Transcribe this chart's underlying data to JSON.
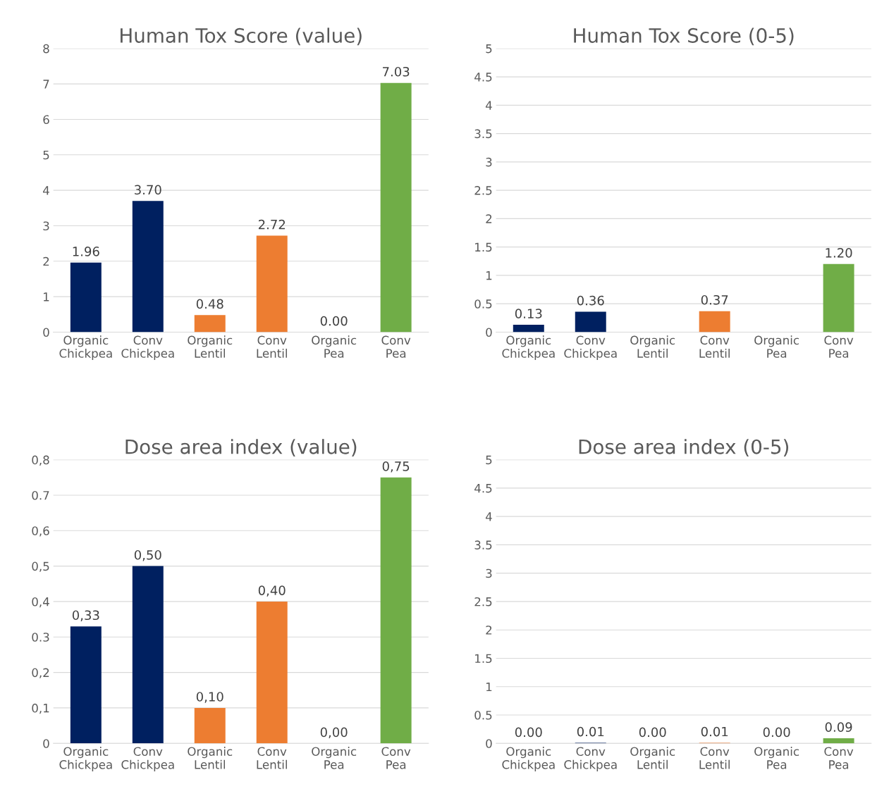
{
  "chart_data": [
    {
      "type": "bar",
      "title": "Human Tox Score (value)",
      "categories": [
        "Organic Chickpea",
        "Conv Chickpea",
        "Organic Lentil",
        "Conv Lentil",
        "Organic Pea",
        "Conv Pea"
      ],
      "values": [
        1.96,
        3.7,
        0.48,
        2.72,
        0.0,
        7.03
      ],
      "colors": [
        "#002060",
        "#002060",
        "#ed7d31",
        "#ed7d31",
        "#ed7d31",
        "#70ad47"
      ],
      "value_labels": [
        "1.96",
        "3.70",
        "0.48",
        "2.72",
        "0.00",
        "7.03"
      ],
      "ylim": [
        0,
        8
      ],
      "yticks": [
        0,
        1,
        2,
        3,
        4,
        5,
        6,
        7,
        8
      ],
      "grid": "y",
      "legend": false
    },
    {
      "type": "bar",
      "title": "Human Tox Score (0-5)",
      "categories": [
        "Organic Chickpea",
        "Conv Chickpea",
        "Organic Lentil",
        "Conv Lentil",
        "Organic Pea",
        "Conv Pea"
      ],
      "values": [
        0.13,
        0.36,
        null,
        0.37,
        null,
        1.2
      ],
      "colors": [
        "#002060",
        "#002060",
        "#ed7d31",
        "#ed7d31",
        "#ed7d31",
        "#70ad47"
      ],
      "value_labels": [
        "0.13",
        "0.36",
        null,
        "0.37",
        null,
        "1.20"
      ],
      "ylim": [
        0,
        5
      ],
      "yticks": [
        0,
        0.5,
        1,
        1.5,
        2,
        2.5,
        3,
        3.5,
        4,
        4.5,
        5
      ],
      "grid": "y",
      "legend": false
    },
    {
      "type": "bar",
      "title": "Dose area index (value)",
      "categories": [
        "Organic Chickpea",
        "Conv Chickpea",
        "Organic Lentil",
        "Conv Lentil",
        "Organic Pea",
        "Conv Pea"
      ],
      "values": [
        0.33,
        0.5,
        0.1,
        0.4,
        0.0,
        0.75
      ],
      "colors": [
        "#002060",
        "#002060",
        "#ed7d31",
        "#ed7d31",
        "#ed7d31",
        "#70ad47"
      ],
      "value_labels": [
        "0,33",
        "0,50",
        "0,10",
        "0,40",
        "0,00",
        "0,75"
      ],
      "ylim": [
        0,
        0.8
      ],
      "yticks": [
        0,
        {
          "value": 0.1,
          "label": "0,1"
        },
        {
          "value": 0.2,
          "label": "0,2"
        },
        {
          "value": 0.3,
          "label": "0.3"
        },
        {
          "value": 0.4,
          "label": "0,4"
        },
        {
          "value": 0.5,
          "label": "0,5"
        },
        {
          "value": 0.6,
          "label": "0,6"
        },
        {
          "value": 0.7,
          "label": "0.7"
        },
        {
          "value": 0.8,
          "label": "0,8"
        }
      ],
      "grid": "y",
      "legend": false
    },
    {
      "type": "bar",
      "title": "Dose area index (0-5)",
      "categories": [
        "Organic Chickpea",
        "Conv Chickpea",
        "Organic Lentil",
        "Conv Lentil",
        "Organic Pea",
        "Conv Pea"
      ],
      "values": [
        0.0,
        0.01,
        0.0,
        0.01,
        0.0,
        0.09
      ],
      "colors": [
        "#002060",
        "#002060",
        "#ed7d31",
        "#ed7d31",
        "#ed7d31",
        "#70ad47"
      ],
      "value_labels": [
        "0.00",
        "0.01",
        "0.00",
        "0.01",
        "0.00",
        "0.09"
      ],
      "ylim": [
        0,
        5
      ],
      "yticks": [
        0,
        0.5,
        1,
        1.5,
        2,
        2.5,
        3,
        3.5,
        4,
        4.5,
        5
      ],
      "grid": "y",
      "legend": false
    }
  ]
}
